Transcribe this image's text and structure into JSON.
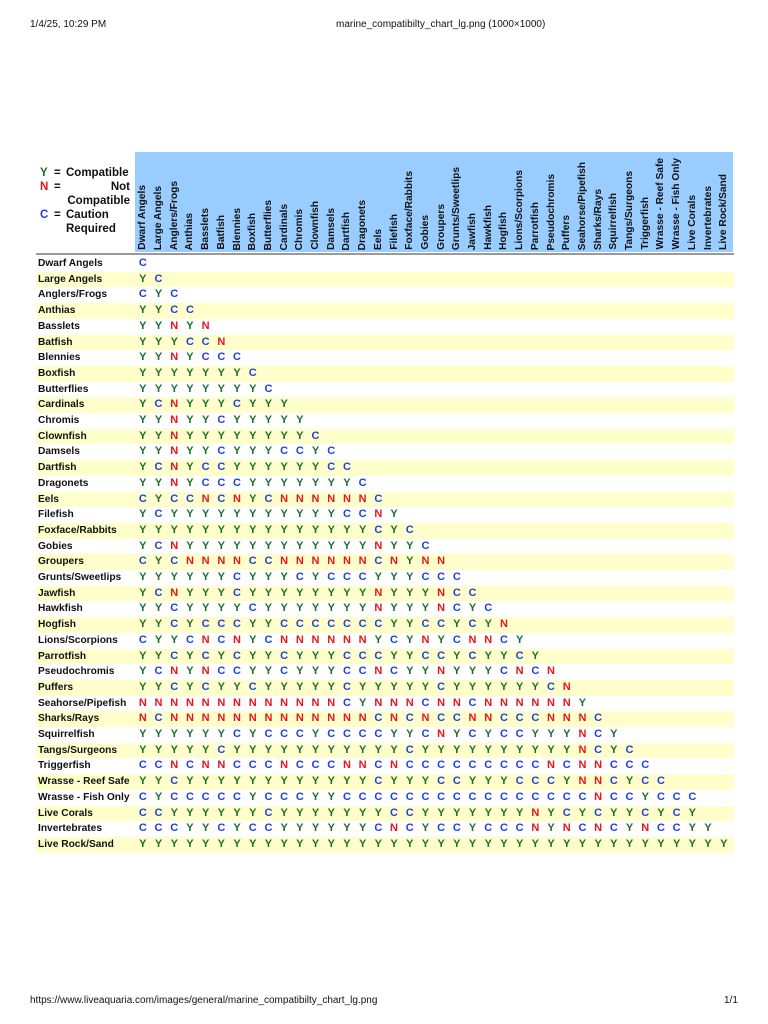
{
  "page_header": {
    "datetime": "1/4/25, 10:29 PM",
    "title": "marine_compatibilty_chart_lg.png (1000×1000)"
  },
  "page_footer": {
    "url": "https://www.liveaquaria.com/images/general/marine_compatibilty_chart_lg.png",
    "page": "1/1"
  },
  "colors": {
    "Y": "#1e6e2e",
    "N": "#e8141c",
    "C": "#1f3fe0",
    "header_bg": "#99ccff",
    "alt_row": "#ffffcc"
  },
  "legend": [
    {
      "key": "Y",
      "eq": "=",
      "text": "Compatible"
    },
    {
      "key": "N",
      "eq": "=",
      "text": "Not Compatible"
    },
    {
      "key": "C",
      "eq": "=",
      "text": "Caution Required"
    }
  ],
  "chart_data": {
    "type": "table",
    "species": [
      "Dwarf Angels",
      "Large Angels",
      "Anglers/Frogs",
      "Anthias",
      "Basslets",
      "Batfish",
      "Blennies",
      "Boxfish",
      "Butterflies",
      "Cardinals",
      "Chromis",
      "Clownfish",
      "Damsels",
      "Dartfish",
      "Dragonets",
      "Eels",
      "Filefish",
      "Foxface/Rabbits",
      "Gobies",
      "Groupers",
      "Grunts/Sweetlips",
      "Jawfish",
      "Hawkfish",
      "Hogfish",
      "Lions/Scorpions",
      "Parrotfish",
      "Pseudochromis",
      "Puffers",
      "Seahorse/Pipefish",
      "Sharks/Rays",
      "Squirrelfish",
      "Tangs/Surgeons",
      "Triggerfish",
      "Wrasse - Reef Safe",
      "Wrasse - Fish Only",
      "Live Corals",
      "Invertebrates",
      "Live Rock/Sand"
    ],
    "matrix": [
      "C",
      "YC",
      "CYC",
      "YYCC",
      "YYNYN",
      "YYYCCN",
      "YYNYCCC",
      "YYYYYYYC",
      "YYYYYYYYC",
      "YCNYYYCYYY",
      "YYNYYCYYYYY",
      "YYNYYYYYYYYC",
      "YYNYYCYYYCCYC",
      "YCNYCCYYYYYYCC",
      "YYNYCCCYYYYYYYC",
      "CYCCNCNYCNNNNNNC",
      "YCYYYYYYYYYYYCCNY",
      "YYYYYYYYYYYYYYYCYC",
      "YCNYYYYYYYYYYYYNYYC",
      "CYCNNNNCCNNNNNNCNYNN",
      "YYYYYYCYYYCYCCCYYYCCC",
      "YCNYYYCYYYYYYYYNYYYNCC",
      "YYCYYYYCYYYYYYYNYYYNCYC",
      "YYCYCCCYYCCCCCCCYYCCYCYN",
      "CYYCNCNYCNNNNNNYCYNYCNNCY",
      "YYCYCYCYYCYYYCCCYYCCYCYYCY",
      "YCNYNCCYYCYYYCCNCYYNYYYCNCN",
      "YYCYCYYCYYYYYCYYYYYCYYYYYYCN",
      "NNNNNNNNNNNNNCYNNNCNNCNNNNNNY",
      "NCNNNNNNNNNNNNNCNCNCCNNCCCNNNC",
      "YYYYYYCYCCCYCCCCYYCNYCYCCYYYNCY",
      "YYYYYCYYYYYYYYYYYCYYYYYYYYYYNCYC",
      "CCNCNNCCCNCCCNNCNCCCCCCCCCNCNNCCC",
      "YYCYYYYYYYYYYYYCYYYCCYYYCCCYNNCYCC",
      "CYCCCCCYCCCYYCCCCCCCCCCCCCCCCNCCYCCC",
      "CCYYYYYYCYYYYYYYCCYYYYYYYNYCYCYYCYCY",
      "CCCYYCYCCYYYYYYCNCYCCYCCCNYNCNCYNCCYY",
      "YYYYYYYYYYYYYYYYYYYYYYYYYYYYYYYYYYYYYY"
    ]
  }
}
